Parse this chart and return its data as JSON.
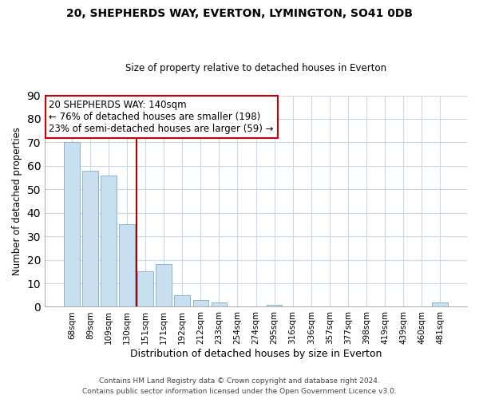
{
  "title1": "20, SHEPHERDS WAY, EVERTON, LYMINGTON, SO41 0DB",
  "title2": "Size of property relative to detached houses in Everton",
  "xlabel": "Distribution of detached houses by size in Everton",
  "ylabel": "Number of detached properties",
  "categories": [
    "68sqm",
    "89sqm",
    "109sqm",
    "130sqm",
    "151sqm",
    "171sqm",
    "192sqm",
    "212sqm",
    "233sqm",
    "254sqm",
    "274sqm",
    "295sqm",
    "316sqm",
    "336sqm",
    "357sqm",
    "377sqm",
    "398sqm",
    "419sqm",
    "439sqm",
    "460sqm",
    "481sqm"
  ],
  "values": [
    70,
    58,
    56,
    35,
    15,
    18,
    5,
    3,
    2,
    0,
    0,
    1,
    0,
    0,
    0,
    0,
    0,
    0,
    0,
    0,
    2
  ],
  "bar_color": "#c8dff0",
  "bar_edge_color": "#8ab4d4",
  "vline_color": "#aa0000",
  "annotation_title": "20 SHEPHERDS WAY: 140sqm",
  "annotation_line1": "← 76% of detached houses are smaller (198)",
  "annotation_line2": "23% of semi-detached houses are larger (59) →",
  "box_edge_color": "#cc0000",
  "ylim": [
    0,
    90
  ],
  "yticks": [
    0,
    10,
    20,
    30,
    40,
    50,
    60,
    70,
    80,
    90
  ],
  "footer1": "Contains HM Land Registry data © Crown copyright and database right 2024.",
  "footer2": "Contains public sector information licensed under the Open Government Licence v3.0.",
  "background_color": "#ffffff",
  "grid_color": "#c8d8e8"
}
